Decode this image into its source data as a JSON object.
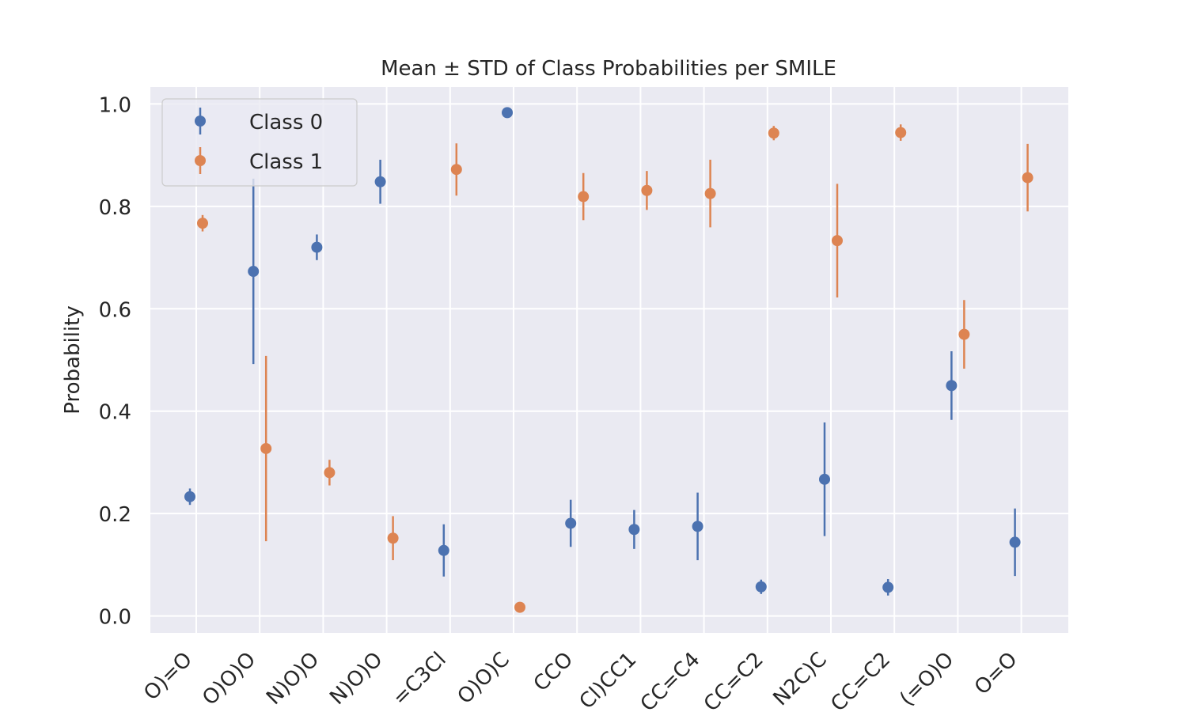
{
  "chart_data": {
    "type": "scatter",
    "title": "Mean ± STD of Class Probabilities per SMILE",
    "xlabel": "",
    "ylabel": "Probability",
    "categories": [
      "O)=O",
      "O)O)O",
      "N)O)O",
      "N)O)O",
      "=C3Cl",
      "O)O)C",
      "CCO",
      "Cl)CC1",
      "CC=C4",
      "CC=C2",
      "N2C)C",
      "CC=C2",
      "(=O)O",
      "O=O"
    ],
    "ylim": [
      -0.033,
      1.033
    ],
    "yticks": [
      0.0,
      0.2,
      0.4,
      0.6,
      0.8,
      1.0
    ],
    "ytick_labels": [
      "0.0",
      "0.2",
      "0.4",
      "0.6",
      "0.8",
      "1.0"
    ],
    "grid": true,
    "legend_position": "top-left",
    "series": [
      {
        "name": "Class 0",
        "color": "#4c72b0",
        "values": [
          0.233,
          0.673,
          0.72,
          0.848,
          0.128,
          0.983,
          0.181,
          0.169,
          0.175,
          0.057,
          0.267,
          0.056,
          0.45,
          0.144
        ],
        "std": [
          0.016,
          0.181,
          0.025,
          0.043,
          0.051,
          0.006,
          0.046,
          0.038,
          0.066,
          0.014,
          0.111,
          0.016,
          0.067,
          0.066
        ]
      },
      {
        "name": "Class 1",
        "color": "#dd8452",
        "values": [
          0.767,
          0.327,
          0.28,
          0.152,
          0.872,
          0.017,
          0.819,
          0.831,
          0.825,
          0.943,
          0.733,
          0.944,
          0.55,
          0.856
        ],
        "std": [
          0.016,
          0.181,
          0.025,
          0.043,
          0.051,
          0.006,
          0.046,
          0.038,
          0.066,
          0.014,
          0.111,
          0.016,
          0.067,
          0.066
        ]
      }
    ]
  }
}
